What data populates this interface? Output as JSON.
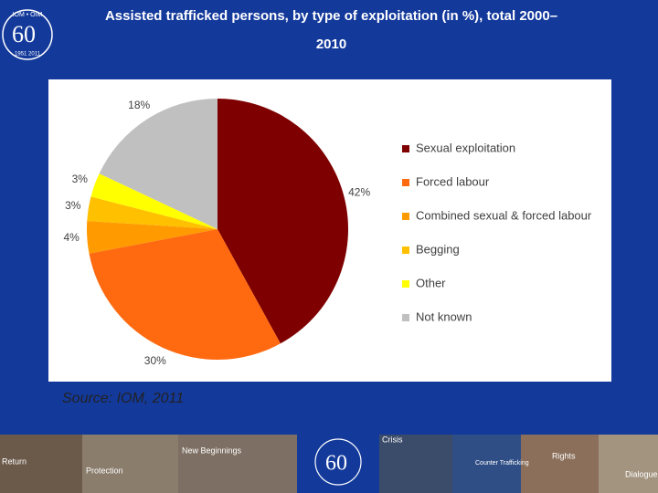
{
  "logo": {
    "top": "IOM • OIM",
    "number": "60",
    "bottom": "1951 2011"
  },
  "chart_data": {
    "type": "pie",
    "title": "Assisted trafficked persons, by type of exploitation (in %), total 2000–2010",
    "categories": [
      "Sexual exploitation",
      "Forced labour",
      "Combined sexual & forced labour",
      "Begging",
      "Other",
      "Not known"
    ],
    "values": [
      42,
      30,
      4,
      3,
      3,
      18
    ],
    "value_labels": [
      "42%",
      "30%",
      "4%",
      "3%",
      "3%",
      "18%"
    ],
    "colors": [
      "#7f0000",
      "#ff6a10",
      "#ff9a00",
      "#ffc000",
      "#ffff00",
      "#c0c0c0"
    ],
    "legend": "right",
    "source": "Source: IOM, 2011"
  },
  "banner_labels": [
    "Return",
    "Protection",
    "New Beginnings",
    "Crisis",
    "Counter Trafficking",
    "Rights",
    "Dialogue"
  ]
}
